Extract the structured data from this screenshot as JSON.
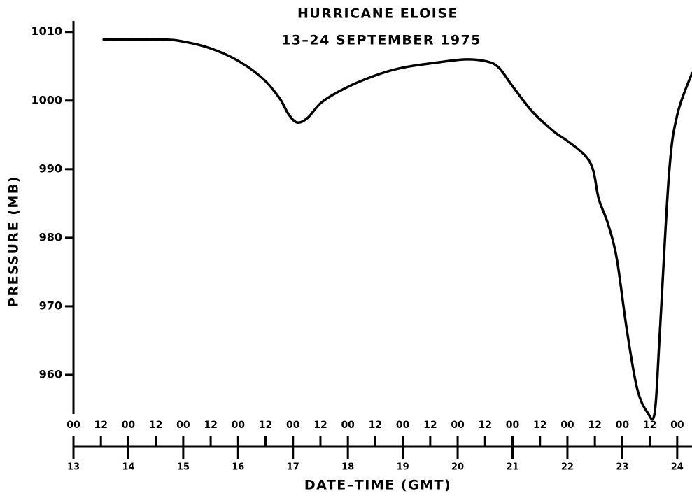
{
  "chart_data": {
    "type": "line",
    "title": "HURRICANE ELOISE",
    "subtitle": "13–24 SEPTEMBER 1975",
    "ylabel": "PRESSURE (MB)",
    "xlabel": "DATE–TIME (GMT)",
    "color": "#000000",
    "x": [
      13.55,
      14.6,
      15,
      15.5,
      16,
      16.45,
      16.75,
      16.92,
      17.08,
      17.27,
      17.53,
      18,
      18.55,
      19,
      19.58,
      20.15,
      20.53,
      20.75,
      21,
      21.36,
      21.75,
      22,
      22.32,
      22.47,
      22.57,
      22.74,
      22.9,
      23.08,
      23.27,
      23.46,
      23.59,
      23.68,
      23.85,
      24,
      24.27
    ],
    "values": [
      1008.9,
      1008.9,
      1008.6,
      1007.6,
      1005.8,
      1003.2,
      1000.4,
      998,
      996.8,
      997.5,
      999.8,
      1002,
      1003.8,
      1004.8,
      1005.5,
      1006,
      1005.7,
      1004.8,
      1002.1,
      998.4,
      995.5,
      994.1,
      992,
      989.8,
      985.7,
      982,
      976.9,
      966.7,
      958,
      954.5,
      954.5,
      965.7,
      989.2,
      997.9,
      1004
    ],
    "xlim": [
      13,
      24.27
    ],
    "ylim": [
      949.6,
      1011.6
    ],
    "yticks": [
      960,
      970,
      980,
      990,
      1000,
      1010
    ],
    "xticks": [
      {
        "value": 13,
        "label": "00"
      },
      {
        "value": 13.5,
        "label": "12"
      },
      {
        "value": 14,
        "label": "00"
      },
      {
        "value": 14.5,
        "label": "12"
      },
      {
        "value": 15,
        "label": "00"
      },
      {
        "value": 15.5,
        "label": "12"
      },
      {
        "value": 16,
        "label": "00"
      },
      {
        "value": 16.5,
        "label": "12"
      },
      {
        "value": 17,
        "label": "00"
      },
      {
        "value": 17.5,
        "label": "12"
      },
      {
        "value": 18,
        "label": "00"
      },
      {
        "value": 18.5,
        "label": "12"
      },
      {
        "value": 19,
        "label": "00"
      },
      {
        "value": 19.5,
        "label": "12"
      },
      {
        "value": 20,
        "label": "00"
      },
      {
        "value": 20.5,
        "label": "12"
      },
      {
        "value": 21,
        "label": "00"
      },
      {
        "value": 21.5,
        "label": "12"
      },
      {
        "value": 22,
        "label": "00"
      },
      {
        "value": 22.5,
        "label": "12"
      },
      {
        "value": 23,
        "label": "00"
      },
      {
        "value": 23.5,
        "label": "12"
      },
      {
        "value": 24,
        "label": "00"
      }
    ],
    "x_day_ticks": [
      13,
      14,
      15,
      16,
      17,
      18,
      19,
      20,
      21,
      22,
      23,
      24
    ],
    "grid": false
  }
}
